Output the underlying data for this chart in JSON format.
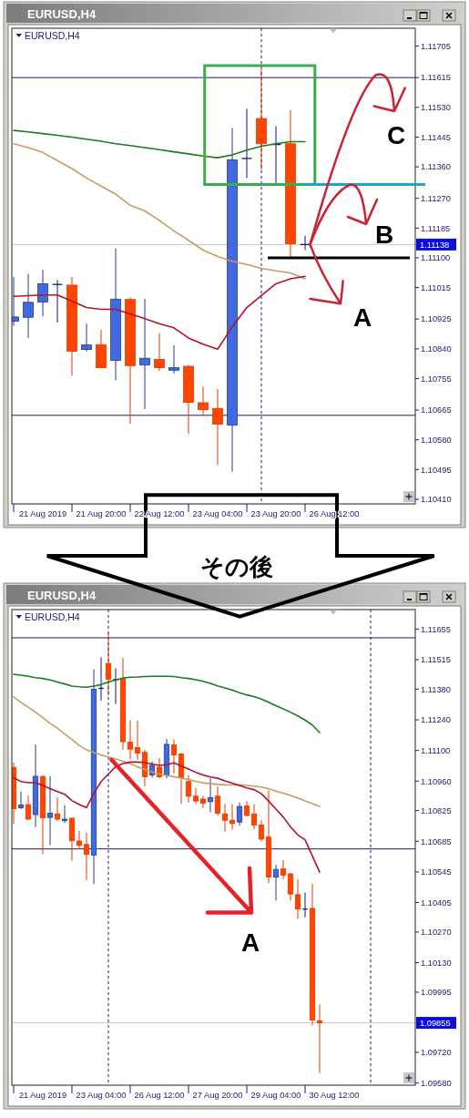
{
  "chart_data": [
    {
      "type": "candlestick",
      "title": "EURUSD,H4",
      "subtitle": "EURUSD,H4",
      "categories": [
        null,
        null,
        "21 Aug 2019",
        null,
        null,
        null,
        "21 Aug 20:00",
        null,
        null,
        null,
        "22 Aug 12:00",
        null,
        null,
        null,
        "23 Aug 04:00",
        null,
        null,
        null,
        "23 Aug 20:00",
        null,
        null,
        null,
        "26 Aug 12:00",
        null,
        null,
        null,
        null,
        null
      ],
      "ohlc": [
        [
          1.10919,
          1.11045,
          1.10906,
          1.10931
        ],
        [
          1.1093,
          1.11054,
          1.10871,
          1.10973
        ],
        [
          1.10974,
          1.11066,
          1.10933,
          1.11026
        ],
        [
          1.11024,
          1.11037,
          1.10915,
          1.11024
        ],
        [
          1.11022,
          1.11045,
          1.10764,
          1.10833
        ],
        [
          1.10838,
          1.10912,
          1.10832,
          1.10851
        ],
        [
          1.10852,
          1.10894,
          1.10784,
          1.10786
        ],
        [
          1.10807,
          1.11127,
          1.1075,
          1.10982
        ],
        [
          1.10981,
          1.10987,
          1.10626,
          1.10792
        ],
        [
          1.10794,
          1.10983,
          1.10668,
          1.10813
        ],
        [
          1.1081,
          1.10885,
          1.10777,
          1.10786
        ],
        [
          1.10779,
          1.1085,
          1.10769,
          1.10786
        ],
        [
          1.1079,
          1.10794,
          1.10597,
          1.10687
        ],
        [
          1.10686,
          1.10732,
          1.10649,
          1.10666
        ],
        [
          1.1067,
          1.10725,
          1.10508,
          1.10625
        ],
        [
          1.10622,
          1.11471,
          1.10489,
          1.1138
        ],
        [
          1.11384,
          1.11526,
          1.11328,
          1.11384
        ],
        [
          1.11498,
          1.11638,
          1.11351,
          1.11426
        ],
        [
          1.11424,
          1.11476,
          1.11312,
          1.11424
        ],
        [
          1.11426,
          1.11522,
          1.11103,
          1.1114
        ],
        [
          1.11138,
          1.11163,
          1.11122,
          1.11138
        ],
        null,
        null,
        null,
        null,
        null,
        null,
        null
      ],
      "colors": [
        "#4169e1",
        "#4169e1",
        "#4169e1",
        "#14146e",
        "#ff4500",
        "#4169e1",
        "#ff4500",
        "#4169e1",
        "#ff4500",
        "#4169e1",
        "#ff4500",
        "#4169e1",
        "#ff4500",
        "#ff4500",
        "#ff4500",
        "#4169e1",
        "#14146e",
        "#ff4500",
        "#14146e",
        "#ff4500",
        "#14146e",
        null,
        null,
        null,
        null,
        null,
        null,
        null
      ],
      "series": [
        {
          "type": "line",
          "color": "#1f7a1f",
          "values": [
            1.11464,
            1.1146,
            1.11455,
            1.1145,
            1.11445,
            1.11439,
            1.11433,
            1.11426,
            1.11421,
            1.11415,
            1.11409,
            1.11403,
            1.11397,
            1.11391,
            1.11386,
            1.11394,
            1.11408,
            1.11419,
            1.11426,
            1.11432,
            1.11432,
            null,
            null,
            null,
            null,
            null,
            null,
            null
          ]
        },
        {
          "type": "line",
          "color": "#c89b64",
          "values": [
            1.11426,
            1.11415,
            1.11401,
            1.11378,
            1.11355,
            1.11328,
            1.11305,
            1.11282,
            1.1125,
            1.11234,
            1.11207,
            1.11177,
            1.1115,
            1.11122,
            1.11104,
            1.1109,
            1.11081,
            1.1107,
            1.11063,
            1.11057,
            1.1104,
            null,
            null,
            null,
            null,
            null,
            null,
            null
          ]
        },
        {
          "type": "line",
          "color": "#b5122a",
          "values": [
            1.1099,
            1.10992,
            1.10994,
            1.10994,
            1.10976,
            1.10958,
            1.10953,
            1.10953,
            1.1094,
            1.10926,
            1.10912,
            1.109,
            1.10871,
            1.10853,
            1.10839,
            1.10903,
            1.10958,
            1.10992,
            1.11026,
            1.1104,
            1.11047,
            null,
            null,
            null,
            null,
            null,
            null,
            null
          ]
        }
      ],
      "ylim": [
        1.10397,
        1.11756
      ],
      "yticks": [
        1.11705,
        1.11615,
        {
          "value": 1.1153,
          "label": "1.11530"
        },
        1.11445,
        {
          "value": 1.1136,
          "label": "1.11360"
        },
        {
          "value": 1.1127,
          "label": "1.11270"
        },
        1.11185,
        {
          "value": 1.111,
          "label": "1.11100"
        },
        1.11015,
        1.10925,
        {
          "value": 1.1084,
          "label": "1.10840"
        },
        1.10755,
        1.10665,
        {
          "value": 1.1058,
          "label": "1.10580"
        },
        1.10495,
        {
          "value": 1.1041,
          "label": "1.10410"
        }
      ],
      "ref_lines": [
        {
          "axis": "y",
          "value": 1.11615,
          "color": "#1a1a6e"
        },
        {
          "axis": "y",
          "value": 1.1065,
          "color": "#1a1a6e"
        },
        {
          "axis": "y",
          "value": 1.11138,
          "label": "1.11138",
          "color": "#c8c8c8"
        }
      ],
      "annotations": [
        {
          "text": "A",
          "y": 1.11138
        },
        {
          "text": "B",
          "y": 1.11138
        },
        {
          "text": "C",
          "y": 1.11615
        }
      ]
    },
    {
      "type": "candlestick",
      "title": "EURUSD,H4",
      "subtitle": "EURUSD,H4",
      "categories": [
        null,
        null,
        null,
        null,
        "21 Aug 2019",
        null,
        null,
        null,
        null,
        null,
        null,
        null,
        "23 Aug 04:00",
        null,
        null,
        null,
        null,
        null,
        null,
        null,
        "26 Aug 12:00",
        null,
        null,
        null,
        null,
        null,
        null,
        null,
        "27 Aug 20:00",
        null,
        null,
        null,
        null,
        null,
        null,
        null,
        "29 Aug 04:00",
        null,
        null,
        null,
        null,
        null,
        null,
        null,
        "30 Aug 12:00",
        null,
        null,
        null,
        null,
        null,
        null,
        null,
        null,
        null,
        null,
        null
      ],
      "ohlc": [
        [
          1.11022,
          1.11045,
          1.10764,
          1.10833
        ],
        [
          1.10838,
          1.10912,
          1.10832,
          1.10851
        ],
        [
          1.10852,
          1.10894,
          1.10784,
          1.10786
        ],
        [
          1.10807,
          1.11127,
          1.1075,
          1.10982
        ],
        [
          1.10981,
          1.10987,
          1.10626,
          1.10792
        ],
        [
          1.10794,
          1.10983,
          1.10668,
          1.10813
        ],
        [
          1.1081,
          1.10885,
          1.10777,
          1.10786
        ],
        [
          1.10779,
          1.1085,
          1.10769,
          1.10786
        ],
        [
          1.1079,
          1.10794,
          1.10597,
          1.10687
        ],
        [
          1.10686,
          1.10732,
          1.10649,
          1.10666
        ],
        [
          1.1067,
          1.10725,
          1.10508,
          1.10625
        ],
        [
          1.10622,
          1.11471,
          1.10489,
          1.1138
        ],
        [
          1.11384,
          1.11526,
          1.11328,
          1.11384
        ],
        [
          1.11498,
          1.11638,
          1.11351,
          1.11426
        ],
        [
          1.11424,
          1.11476,
          1.11312,
          1.11424
        ],
        [
          1.11426,
          1.11522,
          1.11103,
          1.1114
        ],
        [
          1.11138,
          1.11239,
          1.11061,
          1.11106
        ],
        [
          1.11113,
          1.11236,
          1.11058,
          1.11088
        ],
        [
          1.11091,
          1.11103,
          1.10936,
          1.1098
        ],
        [
          1.10988,
          1.1105,
          1.10976,
          1.11032
        ],
        [
          1.11024,
          1.11066,
          1.10973,
          1.1098
        ],
        [
          1.10988,
          1.11153,
          1.10973,
          1.11128
        ],
        [
          1.11125,
          1.1115,
          1.10995,
          1.11079
        ],
        [
          1.11084,
          1.11088,
          1.10855,
          1.10976
        ],
        [
          1.10958,
          1.10988,
          1.10862,
          1.10891
        ],
        [
          1.10891,
          1.10928,
          1.10855,
          1.10869
        ],
        [
          1.10878,
          1.10891,
          1.10837,
          1.10859
        ],
        [
          1.10866,
          1.10973,
          1.10818,
          1.10884
        ],
        [
          1.10891,
          1.10936,
          1.10803,
          1.10813
        ],
        [
          1.1081,
          1.10855,
          1.10729,
          1.10781
        ],
        [
          1.10781,
          1.10855,
          1.10739,
          1.10766
        ],
        [
          1.10773,
          1.10862,
          1.10756,
          1.10844
        ],
        [
          1.10846,
          1.10869,
          1.10799,
          1.10803
        ],
        [
          1.1081,
          1.10855,
          1.10739,
          1.10759
        ],
        [
          1.10759,
          1.10781,
          1.10685,
          1.10695
        ],
        [
          1.10704,
          1.10917,
          1.10493,
          1.10522
        ],
        [
          1.10522,
          1.10577,
          1.10414,
          1.10556
        ],
        [
          1.10559,
          1.10599,
          1.10512,
          1.1053
        ],
        [
          1.10536,
          1.1054,
          1.10414,
          1.10444
        ],
        [
          1.10441,
          1.10512,
          1.1033,
          1.10375
        ],
        [
          1.10375,
          1.10451,
          1.10338,
          1.10375
        ],
        [
          1.10378,
          1.1049,
          1.09843,
          1.09868
        ],
        [
          1.09865,
          1.09939,
          1.09626,
          1.09855
        ],
        null,
        null,
        null,
        null,
        null,
        null,
        null,
        null,
        null,
        null,
        null,
        null,
        null
      ],
      "colors": [
        "#ff4500",
        "#4169e1",
        "#ff4500",
        "#4169e1",
        "#ff4500",
        "#4169e1",
        "#ff4500",
        "#4169e1",
        "#ff4500",
        "#ff4500",
        "#ff4500",
        "#4169e1",
        "#14146e",
        "#ff4500",
        "#14146e",
        "#ff4500",
        "#ff4500",
        "#ff4500",
        "#ff4500",
        "#4169e1",
        "#ff4500",
        "#4169e1",
        "#ff4500",
        "#ff4500",
        "#ff4500",
        "#ff4500",
        "#ff4500",
        "#4169e1",
        "#ff4500",
        "#ff4500",
        "#ff4500",
        "#4169e1",
        "#ff4500",
        "#ff4500",
        "#ff4500",
        "#ff4500",
        "#4169e1",
        "#ff4500",
        "#ff4500",
        "#ff4500",
        "#14146e",
        "#ff4500",
        "#ff4500",
        null,
        null,
        null,
        null,
        null,
        null,
        null,
        null,
        null,
        null,
        null,
        null,
        null
      ],
      "series": [
        {
          "type": "line",
          "color": "#1f7a1f",
          "values": [
            1.11448,
            1.11444,
            1.11439,
            1.11433,
            1.11429,
            1.11422,
            1.11413,
            1.11404,
            1.11394,
            1.11391,
            1.11389,
            1.11394,
            1.11401,
            1.11413,
            1.11422,
            1.11431,
            1.11435,
            1.11436,
            1.11438,
            1.11439,
            1.11439,
            1.11439,
            1.11438,
            1.11433,
            1.11429,
            1.11423,
            1.11416,
            1.11407,
            1.11395,
            1.11386,
            1.11376,
            1.11364,
            1.11354,
            1.11346,
            1.11335,
            1.1132,
            1.11305,
            1.1129,
            1.11275,
            1.11258,
            1.11239,
            1.11216,
            1.11182,
            null,
            null,
            null,
            null,
            null,
            null,
            null,
            null,
            null,
            null,
            null,
            null,
            null
          ]
        },
        {
          "type": "line",
          "color": "#c89b64",
          "values": [
            1.11345,
            1.1132,
            1.11298,
            1.11275,
            1.1125,
            1.11224,
            1.11202,
            1.11175,
            1.1115,
            1.11123,
            1.11103,
            1.11091,
            1.1108,
            1.1107,
            1.11061,
            1.11051,
            1.11039,
            1.11026,
            1.11013,
            1.11002,
            1.10992,
            1.10986,
            1.1098,
            1.10974,
            1.10967,
            1.10959,
            1.10952,
            1.10948,
            1.10945,
            1.10943,
            1.10942,
            1.10942,
            1.1094,
            1.10937,
            1.10933,
            1.10925,
            1.10914,
            1.10905,
            1.10894,
            1.10883,
            1.10869,
            1.10857,
            1.10844,
            null,
            null,
            null,
            null,
            null,
            null,
            null,
            null,
            null,
            null,
            null,
            null,
            null
          ]
        },
        {
          "type": "line",
          "color": "#b5122a",
          "values": [
            1.10976,
            1.10958,
            1.10953,
            1.10953,
            1.1094,
            1.10926,
            1.10912,
            1.109,
            1.10871,
            1.10853,
            1.10839,
            1.10903,
            1.10958,
            1.10992,
            1.11026,
            1.1104,
            1.11047,
            1.11047,
            1.11044,
            1.11038,
            1.11032,
            1.11035,
            1.11043,
            1.11029,
            1.11015,
            1.11,
            1.10988,
            1.10979,
            1.10973,
            1.10961,
            1.10951,
            1.1094,
            1.10929,
            1.10921,
            1.10902,
            1.10869,
            1.10832,
            1.10796,
            1.10751,
            1.10714,
            1.10692,
            1.10618,
            1.10544,
            null,
            null,
            null,
            null,
            null,
            null,
            null,
            null,
            null,
            null,
            null,
            null,
            null
          ]
        }
      ],
      "ylim": [
        1.0957,
        1.11744
      ],
      "yticks": [
        1.11655,
        1.11515,
        {
          "value": 1.1138,
          "label": "1.11380"
        },
        {
          "value": 1.1124,
          "label": "1.11240"
        },
        {
          "value": 1.111,
          "label": "1.11100"
        },
        {
          "value": 1.1096,
          "label": "1.10960"
        },
        1.10825,
        1.10685,
        1.10545,
        1.10405,
        {
          "value": 1.1027,
          "label": "1.10270"
        },
        {
          "value": 1.1013,
          "label": "1.10130"
        },
        1.09995,
        {
          "value": 1.0972,
          "label": "1.09720"
        },
        {
          "value": 1.0958,
          "label": "1.09580"
        }
      ],
      "ref_lines": [
        {
          "axis": "y",
          "value": 1.11615,
          "color": "#1a1a6e"
        },
        {
          "axis": "y",
          "value": 1.1065,
          "color": "#1a1a6e"
        },
        {
          "axis": "y",
          "value": 1.09855,
          "label": "1.09855",
          "color": "#c8c8c8"
        }
      ],
      "annotations": [
        "その後",
        "A"
      ]
    }
  ]
}
